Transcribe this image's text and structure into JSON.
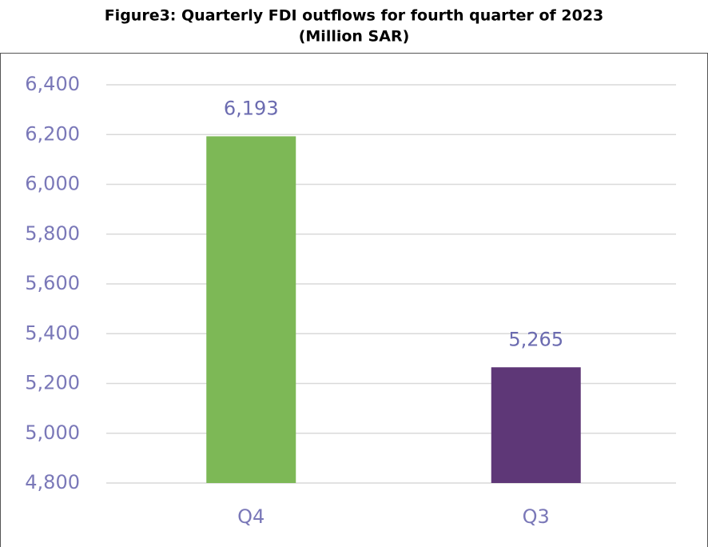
{
  "chart_data": {
    "type": "bar",
    "title": "Figure3: Quarterly FDI outflows for fourth quarter of 2023",
    "subtitle": "(Million SAR)",
    "categories": [
      "Q4",
      "Q3"
    ],
    "values": [
      6193,
      5265
    ],
    "value_labels": [
      "6,193",
      "5,265"
    ],
    "colors": [
      "#7db856",
      "#5e3777"
    ],
    "ylim": [
      4800,
      6400
    ],
    "yticks": [
      {
        "value": 4800,
        "label": "4,800"
      },
      {
        "value": 5000,
        "label": "5,000"
      },
      {
        "value": 5200,
        "label": "5,200"
      },
      {
        "value": 5400,
        "label": "5,400"
      },
      {
        "value": 5600,
        "label": "5,600"
      },
      {
        "value": 5800,
        "label": "5,800"
      },
      {
        "value": 6000,
        "label": "6,000"
      },
      {
        "value": 6200,
        "label": "6,200"
      },
      {
        "value": 6400,
        "label": "6,400"
      }
    ],
    "grid": true
  }
}
